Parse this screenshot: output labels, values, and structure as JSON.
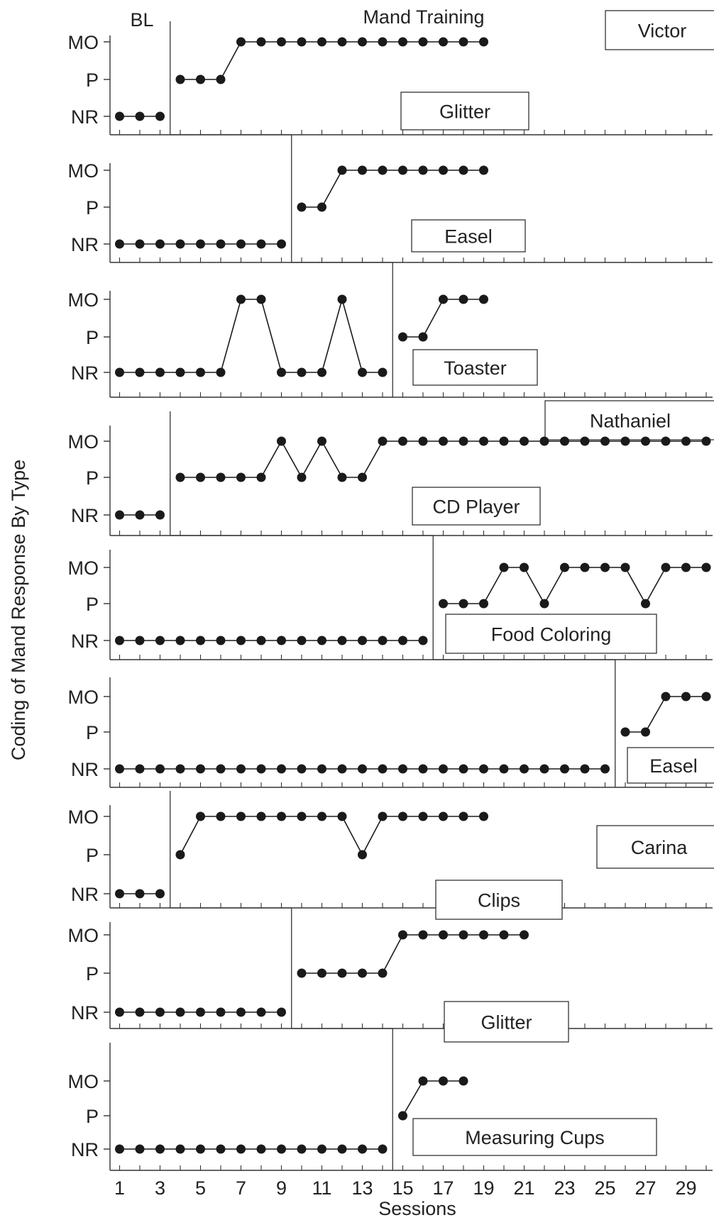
{
  "chart_data": {
    "type": "line",
    "title": "",
    "xlabel": "Sessions",
    "ylabel": "Coding of Mand Response By Type",
    "phase_labels": {
      "baseline": "BL",
      "treatment": "Mand Training"
    },
    "y_levels": [
      "NR",
      "P",
      "MO"
    ],
    "x_range": [
      1,
      30
    ],
    "x_tick_labels": [
      "1",
      "3",
      "5",
      "7",
      "9",
      "11",
      "13",
      "15",
      "17",
      "19",
      "21",
      "23",
      "25",
      "27",
      "29"
    ],
    "participants": [
      "Victor",
      "Nathaniel",
      "Carina"
    ],
    "panels": [
      {
        "participant": "Victor",
        "item": "Glitter",
        "baseline": {
          "x": [
            1,
            2,
            3
          ],
          "y": [
            "NR",
            "NR",
            "NR"
          ]
        },
        "treatment": {
          "x": [
            4,
            5,
            6,
            7,
            8,
            9,
            10,
            11,
            12,
            13,
            14,
            15,
            16,
            17,
            18,
            19
          ],
          "y": [
            "P",
            "P",
            "P",
            "MO",
            "MO",
            "MO",
            "MO",
            "MO",
            "MO",
            "MO",
            "MO",
            "MO",
            "MO",
            "MO",
            "MO",
            "MO"
          ]
        }
      },
      {
        "participant": "Victor",
        "item": "Easel",
        "baseline": {
          "x": [
            1,
            2,
            3,
            4,
            5,
            6,
            7,
            8,
            9
          ],
          "y": [
            "NR",
            "NR",
            "NR",
            "NR",
            "NR",
            "NR",
            "NR",
            "NR",
            "NR"
          ]
        },
        "treatment": {
          "x": [
            10,
            11,
            12,
            13,
            14,
            15,
            16,
            17,
            18,
            19
          ],
          "y": [
            "P",
            "P",
            "MO",
            "MO",
            "MO",
            "MO",
            "MO",
            "MO",
            "MO",
            "MO"
          ]
        }
      },
      {
        "participant": "Victor",
        "item": "Toaster",
        "baseline": {
          "x": [
            1,
            2,
            3,
            4,
            5,
            6,
            7,
            8,
            9,
            10,
            11,
            12,
            13,
            14
          ],
          "y": [
            "NR",
            "NR",
            "NR",
            "NR",
            "NR",
            "NR",
            "MO",
            "MO",
            "NR",
            "NR",
            "NR",
            "MO",
            "NR",
            "NR"
          ]
        },
        "treatment": {
          "x": [
            15,
            16,
            17,
            18,
            19
          ],
          "y": [
            "P",
            "P",
            "MO",
            "MO",
            "MO"
          ]
        }
      },
      {
        "participant": "Nathaniel",
        "item": "CD Player",
        "baseline": {
          "x": [
            1,
            2,
            3
          ],
          "y": [
            "NR",
            "NR",
            "NR"
          ]
        },
        "treatment": {
          "x": [
            4,
            5,
            6,
            7,
            8,
            9,
            10,
            11,
            12,
            13,
            14,
            15,
            16,
            17,
            18,
            19,
            20,
            21,
            22,
            23,
            24,
            25,
            26,
            27,
            28,
            29,
            30
          ],
          "y": [
            "P",
            "P",
            "P",
            "P",
            "P",
            "MO",
            "P",
            "MO",
            "P",
            "P",
            "MO",
            "MO",
            "MO",
            "MO",
            "MO",
            "MO",
            "MO",
            "MO",
            "MO",
            "MO",
            "MO",
            "MO",
            "MO",
            "MO",
            "MO",
            "MO",
            "MO"
          ]
        }
      },
      {
        "participant": "Nathaniel",
        "item": "Food Coloring",
        "baseline": {
          "x": [
            1,
            2,
            3,
            4,
            5,
            6,
            7,
            8,
            9,
            10,
            11,
            12,
            13,
            14,
            15,
            16
          ],
          "y": [
            "NR",
            "NR",
            "NR",
            "NR",
            "NR",
            "NR",
            "NR",
            "NR",
            "NR",
            "NR",
            "NR",
            "NR",
            "NR",
            "NR",
            "NR",
            "NR"
          ]
        },
        "treatment": {
          "x": [
            17,
            18,
            19,
            20,
            21,
            22,
            23,
            24,
            25,
            26,
            27,
            28,
            29,
            30
          ],
          "y": [
            "P",
            "P",
            "P",
            "MO",
            "MO",
            "P",
            "MO",
            "MO",
            "MO",
            "MO",
            "P",
            "MO",
            "MO",
            "MO"
          ]
        }
      },
      {
        "participant": "Nathaniel",
        "item": "Easel",
        "baseline": {
          "x": [
            1,
            2,
            3,
            4,
            5,
            6,
            7,
            8,
            9,
            10,
            11,
            12,
            13,
            14,
            15,
            16,
            17,
            18,
            19,
            20,
            21,
            22,
            23,
            24,
            25
          ],
          "y": [
            "NR",
            "NR",
            "NR",
            "NR",
            "NR",
            "NR",
            "NR",
            "NR",
            "NR",
            "NR",
            "NR",
            "NR",
            "NR",
            "NR",
            "NR",
            "NR",
            "NR",
            "NR",
            "NR",
            "NR",
            "NR",
            "NR",
            "NR",
            "NR",
            "NR"
          ]
        },
        "treatment": {
          "x": [
            26,
            27,
            28,
            29,
            30
          ],
          "y": [
            "P",
            "P",
            "MO",
            "MO",
            "MO"
          ]
        }
      },
      {
        "participant": "Carina",
        "item": "Clips",
        "baseline": {
          "x": [
            1,
            2,
            3
          ],
          "y": [
            "NR",
            "NR",
            "NR"
          ]
        },
        "treatment": {
          "x": [
            4,
            5,
            6,
            7,
            8,
            9,
            10,
            11,
            12,
            13,
            14,
            15,
            16,
            17,
            18,
            19
          ],
          "y": [
            "P",
            "MO",
            "MO",
            "MO",
            "MO",
            "MO",
            "MO",
            "MO",
            "MO",
            "P",
            "MO",
            "MO",
            "MO",
            "MO",
            "MO",
            "MO"
          ]
        }
      },
      {
        "participant": "Carina",
        "item": "Glitter",
        "baseline": {
          "x": [
            1,
            2,
            3,
            4,
            5,
            6,
            7,
            8,
            9
          ],
          "y": [
            "NR",
            "NR",
            "NR",
            "NR",
            "NR",
            "NR",
            "NR",
            "NR",
            "NR"
          ]
        },
        "treatment": {
          "x": [
            10,
            11,
            12,
            13,
            14,
            15,
            16,
            17,
            18,
            19,
            20,
            21
          ],
          "y": [
            "P",
            "P",
            "P",
            "P",
            "P",
            "MO",
            "MO",
            "MO",
            "MO",
            "MO",
            "MO",
            "MO"
          ]
        }
      },
      {
        "participant": "Carina",
        "item": "Measuring Cups",
        "baseline": {
          "x": [
            1,
            2,
            3,
            4,
            5,
            6,
            7,
            8,
            9,
            10,
            11,
            12,
            13,
            14
          ],
          "y": [
            "NR",
            "NR",
            "NR",
            "NR",
            "NR",
            "NR",
            "NR",
            "NR",
            "NR",
            "NR",
            "NR",
            "NR",
            "NR",
            "NR"
          ]
        },
        "treatment": {
          "x": [
            15,
            16,
            17,
            18
          ],
          "y": [
            "P",
            "MO",
            "MO",
            "MO"
          ]
        }
      }
    ],
    "grid": false,
    "legend": "none",
    "colors": {
      "marker": "#1a1a1a",
      "line": "#1a1a1a",
      "axis": "#333333",
      "text": "#222222"
    }
  }
}
